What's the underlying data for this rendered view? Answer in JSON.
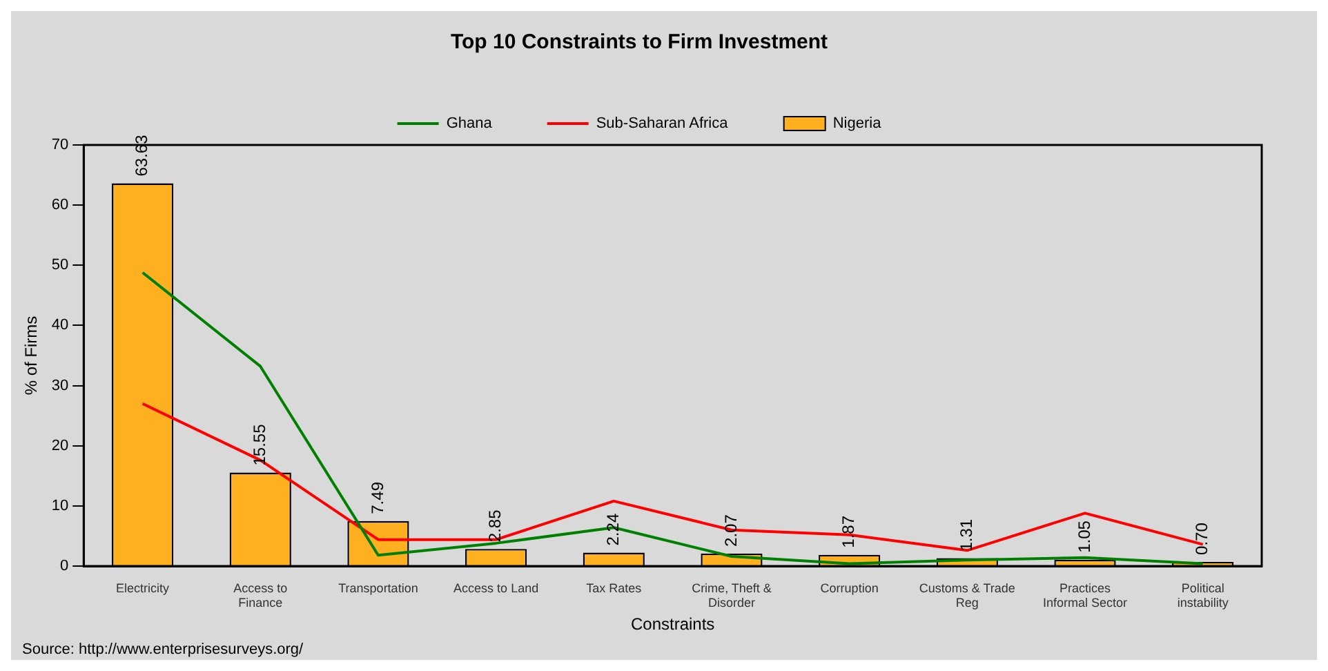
{
  "chart_data": {
    "type": "bar",
    "title": "Top 10 Constraints to Firm Investment",
    "xlabel": "Constraints",
    "ylabel": "% of Firms",
    "categories": [
      "Electricity",
      "Access to Finance",
      "Transportation",
      "Access to Land",
      "Tax Rates",
      "Crime, Theft & Disorder",
      "Corruption",
      "Customs & Trade Reg",
      "Practices Informal Sector",
      "Political instability"
    ],
    "series": [
      {
        "name": "Ghana",
        "type": "line",
        "color": "#008000",
        "values": [
          48.8,
          33.2,
          1.8,
          3.8,
          6.4,
          1.6,
          0.4,
          1.0,
          1.4,
          0.4
        ]
      },
      {
        "name": "Sub-Saharan Africa",
        "type": "line",
        "color": "#ff0000",
        "values": [
          27.0,
          17.6,
          4.4,
          4.4,
          10.8,
          6.0,
          5.2,
          2.6,
          8.8,
          3.6
        ]
      },
      {
        "name": "Nigeria",
        "color": "#ffb020",
        "values": [
          63.63,
          15.55,
          7.49,
          2.85,
          2.24,
          2.07,
          1.87,
          1.31,
          1.05,
          0.7
        ],
        "value_labels": [
          "63.63",
          "15.55",
          "7.49",
          "2.85",
          "2.24",
          "2.07",
          "1.87",
          "1.31",
          "1.05",
          "0.70"
        ]
      }
    ],
    "ylim": [
      0,
      70
    ],
    "yticks": [
      0,
      10,
      20,
      30,
      40,
      50,
      60,
      70
    ],
    "grid": false,
    "legend": "top",
    "marker": "none",
    "annotations": [
      "Source: http://www.enterprisesurveys.org/"
    ]
  }
}
